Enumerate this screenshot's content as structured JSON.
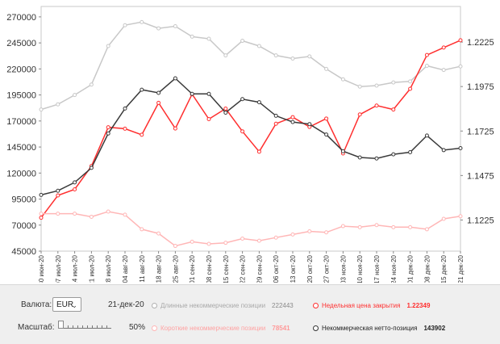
{
  "chart_data": {
    "type": "line",
    "categories": [
      "30 июн-20",
      "07 июл-20",
      "14 июл-20",
      "21 июл-20",
      "28 июл-20",
      "04 авг-20",
      "11 авг-20",
      "18 авг-20",
      "25 авг-20",
      "01 сен-20",
      "08 сен-20",
      "15 сен-20",
      "22 сен-20",
      "29 сен-20",
      "06 окт-20",
      "13 окт-20",
      "20 окт-20",
      "27 окт-20",
      "03 ноя-20",
      "10 ноя-20",
      "17 ноя-20",
      "24 ноя-20",
      "01 дек-20",
      "08 дек-20",
      "15 дек-20",
      "21 дек-20"
    ],
    "left_axis": {
      "ylim": [
        45000,
        280000
      ],
      "ticks": [
        45000,
        70000,
        95000,
        120000,
        145000,
        170000,
        195000,
        220000,
        245000,
        270000
      ]
    },
    "right_axis": {
      "ylim": [
        1.105,
        1.2425
      ],
      "ticks": [
        1.1225,
        1.1475,
        1.1725,
        1.1975,
        1.2225
      ]
    },
    "series": [
      {
        "name": "Длинные некоммерческие позиции",
        "axis": "left",
        "color": "#c8c8c8",
        "values": [
          181000,
          186000,
          195000,
          205000,
          242000,
          262000,
          265000,
          259000,
          261000,
          251000,
          249000,
          233000,
          247000,
          242000,
          233000,
          230000,
          232000,
          220000,
          210000,
          203000,
          204000,
          207000,
          208000,
          223000,
          219000,
          222443
        ]
      },
      {
        "name": "Недельная цена закрытия",
        "axis": "right",
        "color": "#ff2f2f",
        "values": [
          1.1238,
          1.1363,
          1.1397,
          1.1528,
          1.1746,
          1.1738,
          1.1704,
          1.1883,
          1.1739,
          1.1932,
          1.1792,
          1.1851,
          1.1723,
          1.1609,
          1.1766,
          1.1803,
          1.1748,
          1.1795,
          1.1599,
          1.1818,
          1.1868,
          1.1846,
          1.1962,
          1.2152,
          1.2194,
          1.22349
        ]
      },
      {
        "name": "Короткие некоммерческие позиции",
        "axis": "left",
        "color": "#ffb6b6",
        "values": [
          81000,
          81000,
          81000,
          78000,
          83000,
          80000,
          66000,
          62000,
          50000,
          54000,
          52000,
          53000,
          57000,
          55000,
          58000,
          61000,
          64000,
          63000,
          69000,
          68000,
          70000,
          68000,
          68000,
          66000,
          76000,
          78541
        ]
      },
      {
        "name": "Некоммерческая нетто-позиция",
        "axis": "left",
        "color": "#3a3a3a",
        "values": [
          99000,
          103000,
          111000,
          125000,
          158000,
          182000,
          200000,
          197000,
          211000,
          196000,
          196000,
          178000,
          191000,
          188000,
          175000,
          169000,
          167000,
          157000,
          141000,
          135000,
          134000,
          138000,
          140000,
          156000,
          142000,
          143902
        ]
      }
    ],
    "grid": false
  },
  "panel": {
    "currency_label": "Валюта:",
    "currency_value": "EUR",
    "date": "21-дек-20",
    "scale_label": "Масштаб:",
    "scale_value": "50%",
    "legend": [
      {
        "label": "Длинные некоммерческие позиции",
        "value": "222443",
        "color": "#b0b0b0",
        "text_color": "#a9a9a9"
      },
      {
        "label": "Недельная цена закрытия",
        "value": "1.22349",
        "color": "#ff2f2f",
        "text_color": "#ff2f2f"
      },
      {
        "label": "Короткие некоммерческие позиции",
        "value": "78541",
        "color": "#ffb6b6",
        "text_color": "#ffa3a3"
      },
      {
        "label": "Некоммерческая нетто-позиция",
        "value": "143902",
        "color": "#333333",
        "text_color": "#222222"
      }
    ]
  }
}
